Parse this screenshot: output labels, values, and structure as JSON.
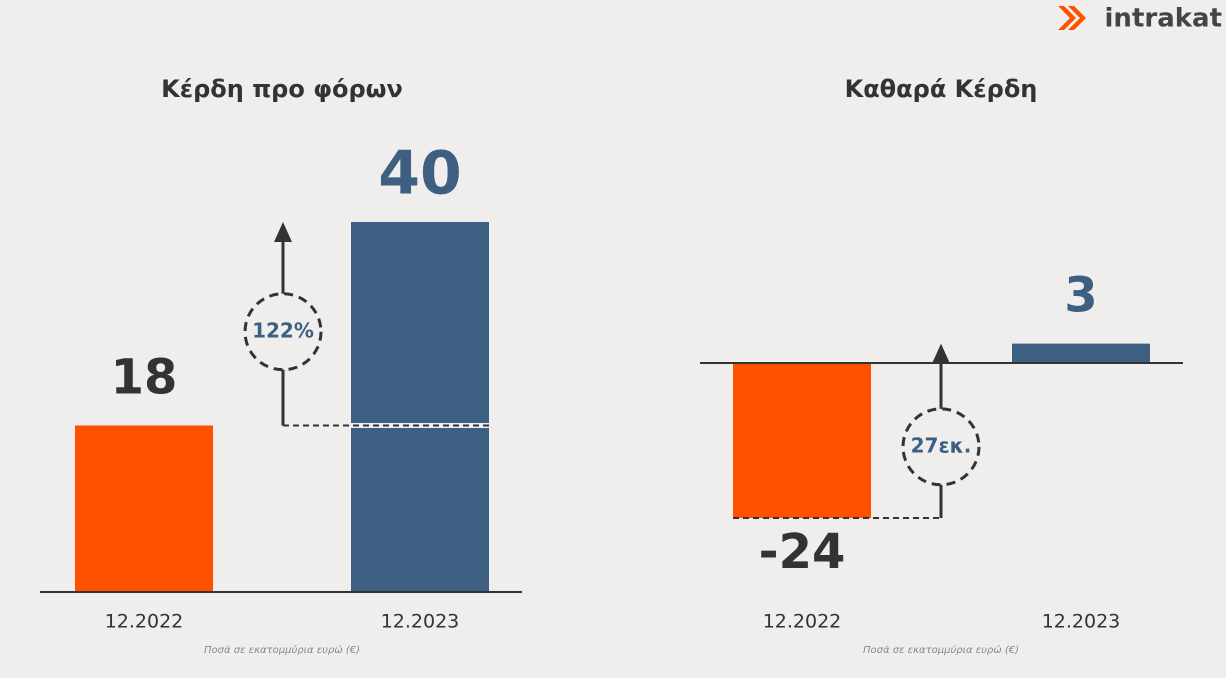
{
  "logo": "intrakat",
  "chart_data": [
    {
      "type": "bar",
      "title": "Κέρδη προ φόρων",
      "categories": [
        "12.2022",
        "12.2023"
      ],
      "values": [
        18,
        40
      ],
      "colors": [
        "#ff5000",
        "#3d5f82"
      ],
      "annotation": "122%",
      "note": "Ποσά σε εκατομμύρια ευρώ (€)"
    },
    {
      "type": "bar",
      "title": "Καθαρά Κέρδη",
      "categories": [
        "12.2022",
        "12.2023"
      ],
      "values": [
        -24,
        3
      ],
      "colors": [
        "#ff5000",
        "#3d5f82"
      ],
      "annotation": "27εκ.",
      "note": "Ποσά σε εκατομμύρια ευρώ (€)"
    }
  ]
}
